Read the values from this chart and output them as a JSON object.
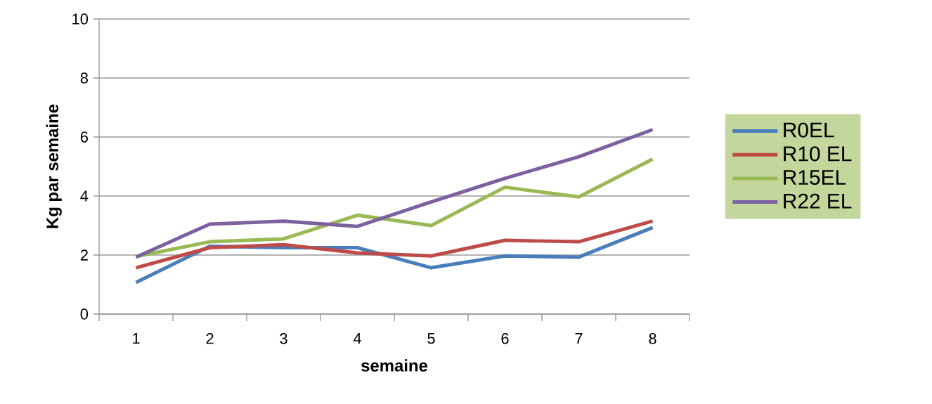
{
  "chart_data": {
    "type": "line",
    "xlabel": "semaine",
    "ylabel": "Kg par semaine",
    "categories": [
      "1",
      "2",
      "3",
      "4",
      "5",
      "6",
      "7",
      "8"
    ],
    "series": [
      {
        "name": "R0EL",
        "color": "#4a7ebb",
        "values": [
          1.07,
          2.3,
          2.25,
          2.25,
          1.57,
          1.97,
          1.93,
          2.93
        ]
      },
      {
        "name": "R10 EL",
        "color": "#be4b48",
        "values": [
          1.57,
          2.25,
          2.35,
          2.07,
          1.97,
          2.5,
          2.45,
          3.15
        ]
      },
      {
        "name": "R15EL",
        "color": "#98b954",
        "values": [
          1.95,
          2.45,
          2.55,
          3.35,
          3.0,
          4.3,
          3.97,
          5.25
        ]
      },
      {
        "name": "R22 EL",
        "color": "#7d60a0",
        "values": [
          1.93,
          3.05,
          3.15,
          2.97,
          3.8,
          4.6,
          5.33,
          6.25
        ]
      }
    ],
    "ylim": [
      0,
      10
    ],
    "yticks": [
      0,
      2,
      4,
      6,
      8,
      10
    ],
    "grid": "y",
    "legend": "right",
    "marker": "none",
    "line_style": "solid"
  }
}
